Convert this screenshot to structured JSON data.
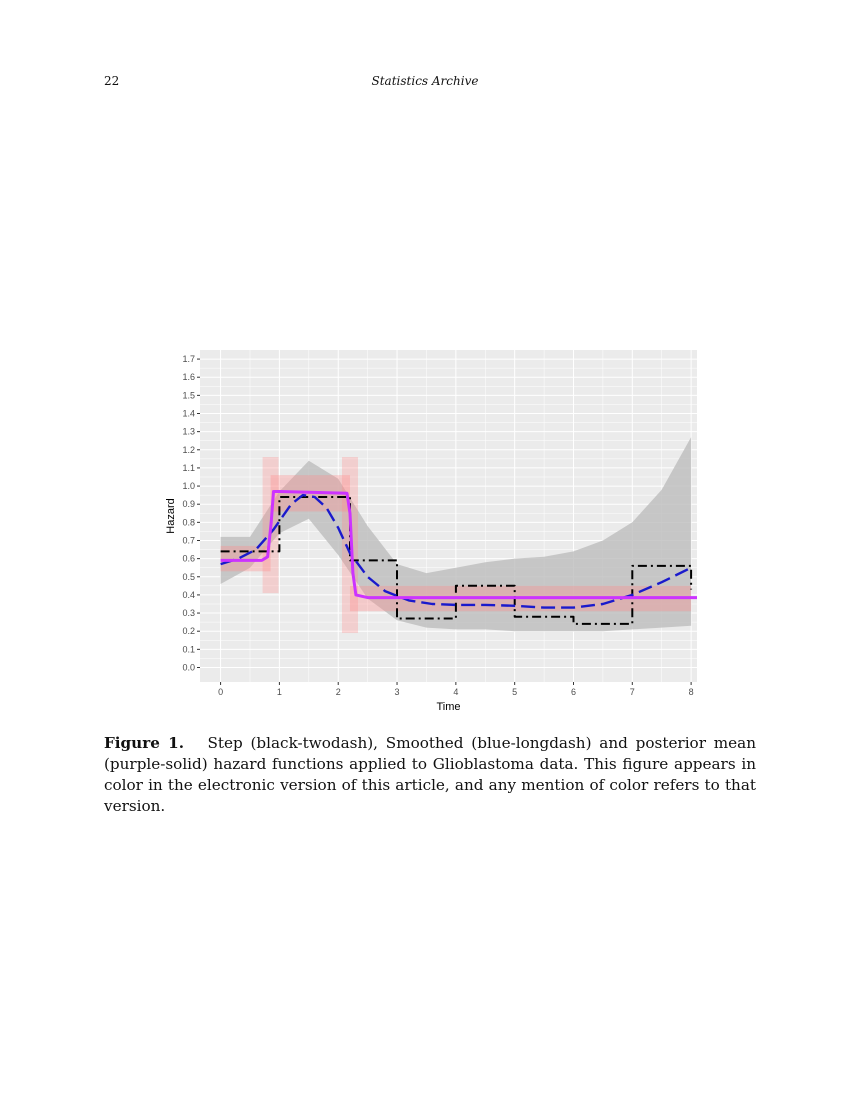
{
  "header": {
    "page_number": "22",
    "journal": "Statistics Archive"
  },
  "figure": {
    "label": "Figure 1.",
    "caption": "Step (black-twodash), Smoothed (blue-longdash) and posterior mean (purple-solid) hazard functions applied to Glioblastoma data. This figure appears in color in the electronic version of this article, and any mention of color refers to that version."
  },
  "chart_data": {
    "type": "line",
    "xlabel": "Time",
    "ylabel": "Hazard",
    "xlim": [
      -0.35,
      8.1
    ],
    "ylim": [
      -0.08,
      1.75
    ],
    "x_ticks": [
      0,
      1,
      2,
      3,
      4,
      5,
      6,
      7,
      8
    ],
    "x_tick_labels": [
      "0",
      "1",
      "2",
      "3",
      "4",
      "5",
      "6",
      "7",
      "8"
    ],
    "y_ticks": [
      0.0,
      0.1,
      0.2,
      0.3,
      0.4,
      0.5,
      0.6,
      0.7,
      0.8,
      0.9,
      1.0,
      1.1,
      1.2,
      1.3,
      1.4,
      1.5,
      1.6,
      1.7
    ],
    "y_tick_labels": [
      "0.0",
      "0.1",
      "0.2",
      "0.3",
      "0.4",
      "0.5",
      "0.6",
      "0.7",
      "0.8",
      "0.9",
      "1.0",
      "1.1",
      "1.2",
      "1.3",
      "1.4",
      "1.5",
      "1.6",
      "1.7"
    ],
    "grid": true,
    "background": "#ebebeb",
    "colors": {
      "band": "#bdbdbd",
      "posterior_draws": "#ff8a8a",
      "step": "#000000",
      "smoothed": "#1a1acc",
      "posterior_mean": "#cc33ff"
    },
    "band": {
      "x": [
        0,
        0.5,
        1,
        1.5,
        2,
        2.5,
        3,
        3.5,
        4,
        4.5,
        5,
        5.5,
        6,
        6.5,
        7,
        7.5,
        8
      ],
      "lower": [
        0.46,
        0.55,
        0.74,
        0.82,
        0.62,
        0.38,
        0.26,
        0.22,
        0.21,
        0.21,
        0.2,
        0.2,
        0.2,
        0.2,
        0.21,
        0.22,
        0.23
      ],
      "upper": [
        0.72,
        0.72,
        0.97,
        1.14,
        1.04,
        0.78,
        0.57,
        0.52,
        0.55,
        0.58,
        0.6,
        0.61,
        0.64,
        0.7,
        0.8,
        0.98,
        1.27
      ]
    },
    "posterior_draws_band": {
      "segments": [
        {
          "x0": 0,
          "x1": 0.85,
          "low": 0.53,
          "high": 0.67
        },
        {
          "x0": 0.85,
          "x1": 2.2,
          "low": 0.86,
          "high": 1.06
        },
        {
          "x0": 2.2,
          "x1": 8,
          "low": 0.31,
          "high": 0.45
        }
      ]
    },
    "series": [
      {
        "name": "Step",
        "style": "twodash",
        "x": [
          0,
          0.78,
          0.78,
          1,
          1,
          2,
          2,
          2.2,
          2.2,
          3,
          3,
          4,
          4,
          5,
          5,
          6,
          6,
          7,
          7,
          8,
          8
        ],
        "y": [
          0.64,
          0.64,
          0.64,
          0.64,
          0.94,
          0.94,
          0.94,
          0.94,
          0.59,
          0.59,
          0.27,
          0.27,
          0.45,
          0.45,
          0.28,
          0.28,
          0.24,
          0.24,
          0.56,
          0.56,
          0.43
        ]
      },
      {
        "name": "Smoothed",
        "style": "longdash",
        "x": [
          0,
          0.3,
          0.6,
          0.9,
          1.2,
          1.4,
          1.6,
          1.8,
          2.0,
          2.2,
          2.5,
          2.8,
          3.2,
          3.6,
          4.0,
          4.5,
          5.0,
          5.5,
          6.0,
          6.5,
          7.0,
          7.5,
          8.0
        ],
        "y": [
          0.57,
          0.6,
          0.65,
          0.76,
          0.9,
          0.95,
          0.94,
          0.88,
          0.77,
          0.63,
          0.5,
          0.42,
          0.37,
          0.35,
          0.345,
          0.345,
          0.34,
          0.33,
          0.33,
          0.35,
          0.4,
          0.47,
          0.55
        ]
      },
      {
        "name": "Posterior mean",
        "style": "solid",
        "x": [
          0,
          0.7,
          0.8,
          0.86,
          0.9,
          1.0,
          2.15,
          2.2,
          2.25,
          2.3,
          2.5,
          8.1
        ],
        "y": [
          0.59,
          0.59,
          0.61,
          0.8,
          0.97,
          0.97,
          0.96,
          0.85,
          0.52,
          0.4,
          0.385,
          0.385
        ]
      }
    ]
  }
}
